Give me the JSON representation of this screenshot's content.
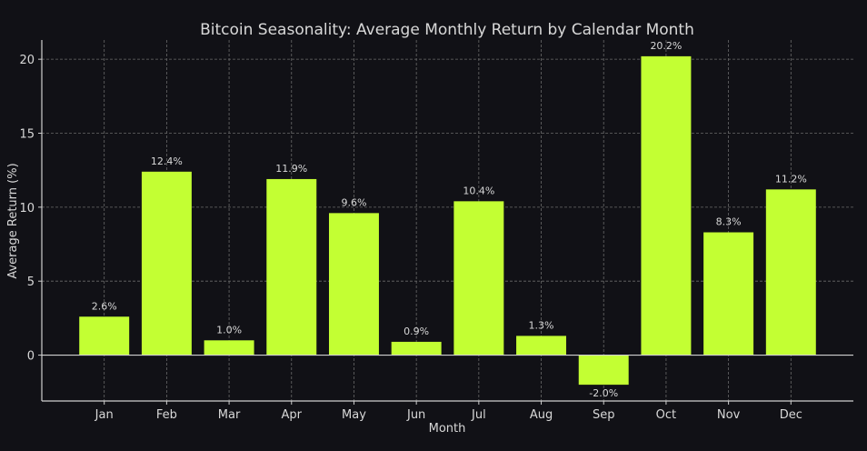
{
  "chart_data": {
    "type": "bar",
    "title": "Bitcoin Seasonality: Average Monthly Return by Calendar Month",
    "xlabel": "Month",
    "ylabel": "Average Return (%)",
    "categories": [
      "Jan",
      "Feb",
      "Mar",
      "Apr",
      "May",
      "Jun",
      "Jul",
      "Aug",
      "Sep",
      "Oct",
      "Nov",
      "Dec"
    ],
    "values": [
      2.6,
      12.4,
      1.0,
      11.9,
      9.6,
      0.9,
      10.4,
      1.3,
      -2.0,
      20.2,
      8.3,
      11.2
    ],
    "data_labels": [
      "2.6%",
      "12.4%",
      "1.0%",
      "11.9%",
      "9.6%",
      "0.9%",
      "10.4%",
      "1.3%",
      "-2.0%",
      "20.2%",
      "8.3%",
      "11.2%"
    ],
    "yticks": [
      0,
      5,
      10,
      15,
      20
    ],
    "ylim": [
      -3.1,
      21.3
    ],
    "grid": true,
    "colors": {
      "background": "#111116",
      "bar": "#c3ff33",
      "text": "#d8d8d8",
      "grid": "#6a6a6a",
      "axis": "#cfcfcf"
    }
  }
}
